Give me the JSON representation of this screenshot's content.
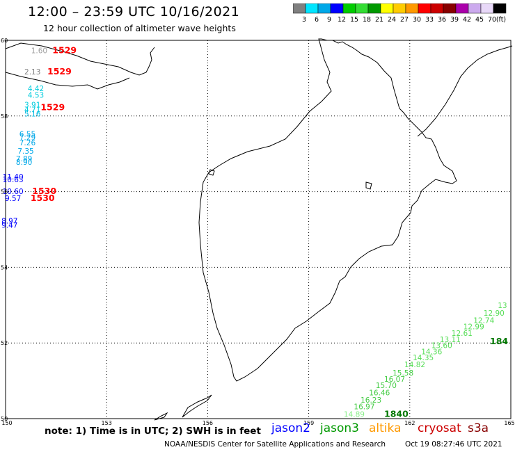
{
  "header": {
    "title": "12:00 – 23:59 UTC 10/16/2021",
    "subtitle": "12 hour collection of altimeter wave heights"
  },
  "colorbar": {
    "labels": [
      "3",
      "6",
      "9",
      "12",
      "15",
      "18",
      "21",
      "24",
      "27",
      "30",
      "33",
      "36",
      "39",
      "42",
      "45",
      "70",
      "(ft)"
    ],
    "colors": [
      "#808080",
      "#00e5ff",
      "#00a8e8",
      "#0000ff",
      "#00cc00",
      "#33dd33",
      "#009900",
      "#ffff00",
      "#ffcc00",
      "#ff9900",
      "#ff0000",
      "#cc0000",
      "#880000",
      "#aa00aa",
      "#ccaaee",
      "#e8d8f8",
      "#000000"
    ]
  },
  "map": {
    "lon_range": [
      150,
      165
    ],
    "lat_range": [
      50,
      60
    ],
    "lon_ticks": [
      "150",
      "153",
      "156",
      "159",
      "162",
      "165"
    ],
    "lat_ticks": [
      "60",
      "58",
      "56",
      "54",
      "52",
      "50"
    ],
    "grid": "dotted"
  },
  "observations": [
    {
      "text": "1.60",
      "color": "#a0a0a0",
      "lon": 151.0,
      "lat": 59.66
    },
    {
      "text": "2.13",
      "color": "#808080",
      "lon": 150.8,
      "lat": 59.1
    },
    {
      "text": "4.42",
      "color": "#00ccdd",
      "lon": 150.9,
      "lat": 58.66
    },
    {
      "text": "4.53",
      "color": "#00ccdd",
      "lon": 150.9,
      "lat": 58.48
    },
    {
      "text": "3.91",
      "color": "#00ccdd",
      "lon": 150.8,
      "lat": 58.23
    },
    {
      "text": "4.71",
      "color": "#00ccdd",
      "lon": 150.8,
      "lat": 58.1
    },
    {
      "text": "5.16",
      "color": "#00b8e0",
      "lon": 150.8,
      "lat": 57.99
    },
    {
      "text": "6.55",
      "color": "#00a8e8",
      "lon": 150.65,
      "lat": 57.45
    },
    {
      "text": "7.29",
      "color": "#00a8e8",
      "lon": 150.65,
      "lat": 57.36
    },
    {
      "text": "7.26",
      "color": "#00a8e8",
      "lon": 150.65,
      "lat": 57.22
    },
    {
      "text": "7.35",
      "color": "#00a8e8",
      "lon": 150.6,
      "lat": 57.0
    },
    {
      "text": "7.89",
      "color": "#00a8e8",
      "lon": 150.55,
      "lat": 56.8
    },
    {
      "text": "8.90",
      "color": "#00a8e8",
      "lon": 150.55,
      "lat": 56.71
    },
    {
      "text": "11.40",
      "color": "#0000ff",
      "lon": 150.22,
      "lat": 56.32
    },
    {
      "text": "10.63",
      "color": "#0000ff",
      "lon": 150.22,
      "lat": 56.25
    },
    {
      "text": "10.60",
      "color": "#0000ff",
      "lon": 150.22,
      "lat": 55.94
    },
    {
      "text": "9.57",
      "color": "#0000ff",
      "lon": 150.22,
      "lat": 55.75
    },
    {
      "text": "8.97",
      "color": "#0000ff",
      "lon": 150.12,
      "lat": 55.16
    },
    {
      "text": "9.47",
      "color": "#0000ff",
      "lon": 150.12,
      "lat": 55.05
    },
    {
      "text": "1529",
      "color": "#ff0000",
      "lon": 151.75,
      "lat": 59.66,
      "bold": true
    },
    {
      "text": "1529",
      "color": "#ff0000",
      "lon": 151.6,
      "lat": 59.1,
      "bold": true
    },
    {
      "text": "1529",
      "color": "#ff0000",
      "lon": 151.4,
      "lat": 58.15,
      "bold": true
    },
    {
      "text": "1530",
      "color": "#ff0000",
      "lon": 151.15,
      "lat": 55.94,
      "bold": true
    },
    {
      "text": "1530",
      "color": "#ff0000",
      "lon": 151.1,
      "lat": 55.75,
      "bold": true
    },
    {
      "text": "13",
      "color": "#55dd55",
      "lon": 164.75,
      "lat": 52.92
    },
    {
      "text": "12.90",
      "color": "#55dd55",
      "lon": 164.5,
      "lat": 52.72
    },
    {
      "text": "12.74",
      "color": "#55dd55",
      "lon": 164.2,
      "lat": 52.53
    },
    {
      "text": "12.99",
      "color": "#55dd55",
      "lon": 163.9,
      "lat": 52.36
    },
    {
      "text": "12.61",
      "color": "#55dd55",
      "lon": 163.55,
      "lat": 52.19
    },
    {
      "text": "13.11",
      "color": "#55dd55",
      "lon": 163.2,
      "lat": 52.02
    },
    {
      "text": "13.60",
      "color": "#55dd55",
      "lon": 162.95,
      "lat": 51.87
    },
    {
      "text": "14.36",
      "color": "#55dd55",
      "lon": 162.65,
      "lat": 51.7
    },
    {
      "text": "14.35",
      "color": "#55dd55",
      "lon": 162.4,
      "lat": 51.54
    },
    {
      "text": "14.82",
      "color": "#55dd55",
      "lon": 162.15,
      "lat": 51.36
    },
    {
      "text": "15.58",
      "color": "#44cc44",
      "lon": 161.8,
      "lat": 51.14
    },
    {
      "text": "16.07",
      "color": "#44cc44",
      "lon": 161.55,
      "lat": 50.97
    },
    {
      "text": "15.70",
      "color": "#44cc44",
      "lon": 161.3,
      "lat": 50.81
    },
    {
      "text": "16.46",
      "color": "#44cc44",
      "lon": 161.1,
      "lat": 50.62
    },
    {
      "text": "16.23",
      "color": "#44cc44",
      "lon": 160.85,
      "lat": 50.42
    },
    {
      "text": "16.97",
      "color": "#44cc44",
      "lon": 160.65,
      "lat": 50.25
    },
    {
      "text": "14.89",
      "color": "#88ee88",
      "lon": 160.35,
      "lat": 50.05
    },
    {
      "text": "184",
      "color": "#007700",
      "lon": 164.65,
      "lat": 51.97,
      "bold": true
    },
    {
      "text": "1840",
      "color": "#007700",
      "lon": 161.6,
      "lat": 50.05,
      "bold": true
    }
  ],
  "footer": {
    "note": "note: 1) Time is in UTC; 2) SWH is in feet",
    "missions": [
      {
        "name": "jason2",
        "color": "#0000ff"
      },
      {
        "name": "jason3",
        "color": "#009900"
      },
      {
        "name": "altika",
        "color": "#ff9900"
      },
      {
        "name": "cryosat",
        "color": "#cc0000"
      },
      {
        "name": "s3a",
        "color": "#880000"
      }
    ],
    "credit": "NOAA/NESDIS Center for Satellite Applications and Research",
    "timestamp": "Oct 19 08:27:46 UTC 2021"
  }
}
